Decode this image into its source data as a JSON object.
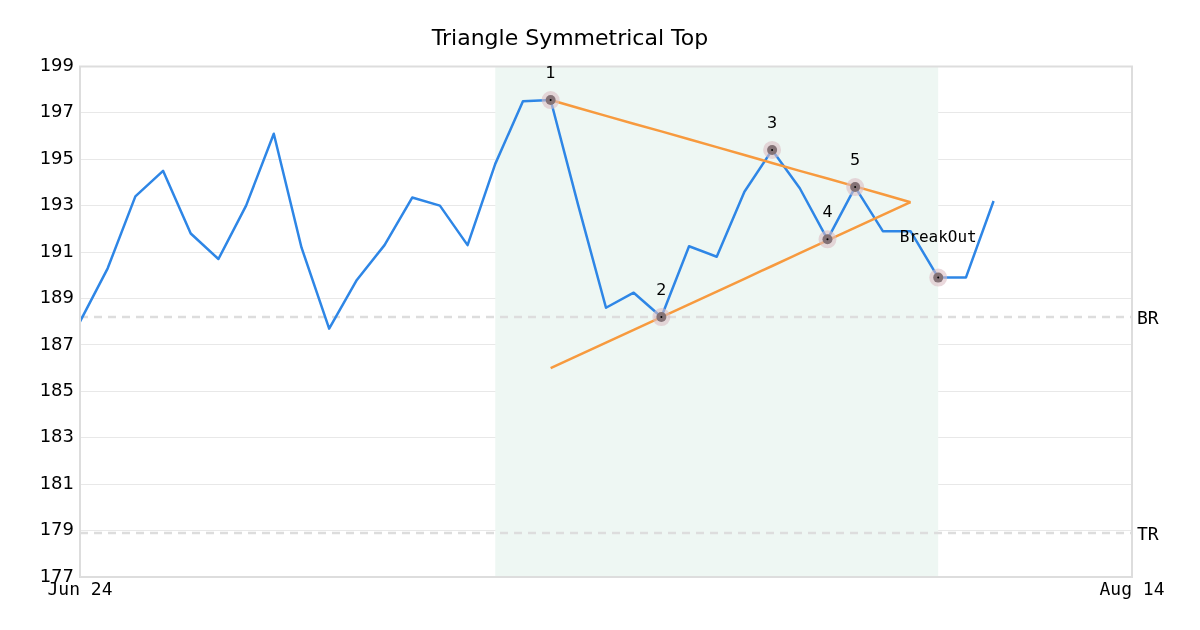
{
  "chart_data": {
    "type": "line",
    "title": "Triangle Symmetrical Top",
    "categories": [
      "Jun 24",
      null,
      null,
      null,
      null,
      null,
      null,
      null,
      null,
      null,
      null,
      null,
      null,
      null,
      null,
      null,
      null,
      null,
      null,
      null,
      null,
      null,
      null,
      null,
      null,
      null,
      null,
      null,
      null,
      null,
      null,
      null,
      null,
      null,
      null,
      null,
      null,
      null,
      "Aug 14"
    ],
    "ylim": [
      177,
      199
    ],
    "yticks": [
      177,
      179,
      181,
      183,
      185,
      187,
      189,
      191,
      193,
      195,
      197,
      199
    ],
    "grid": "y",
    "legend": false,
    "marker": "none",
    "line_style": "solid",
    "series": [
      {
        "color": "#2e86e6",
        "values": [
          188.0,
          190.3,
          193.4,
          194.5,
          191.8,
          190.7,
          193.0,
          196.1,
          191.2,
          187.7,
          189.8,
          191.3,
          193.35,
          193.0,
          191.3,
          194.8,
          197.5,
          197.55,
          193.0,
          188.6,
          189.25,
          188.2,
          191.25,
          190.8,
          193.6,
          195.4,
          193.75,
          191.55,
          193.8,
          191.9,
          191.9,
          189.9,
          189.9,
          193.2,
          null,
          null,
          null,
          null,
          null
        ]
      },
      {
        "color": "#f79a3e",
        "values": [
          null,
          null,
          null,
          null,
          null,
          null,
          null,
          null,
          null,
          null,
          null,
          null,
          null,
          null,
          null,
          null,
          null,
          197.55,
          197.21,
          196.87,
          196.53,
          196.2,
          195.86,
          195.52,
          195.18,
          194.84,
          194.5,
          194.17,
          193.83,
          193.49,
          193.15,
          null,
          null,
          null,
          null,
          null,
          null,
          null,
          null
        ]
      },
      {
        "color": "#f79a3e",
        "values": [
          null,
          null,
          null,
          null,
          null,
          null,
          null,
          null,
          null,
          null,
          null,
          null,
          null,
          null,
          null,
          null,
          null,
          186.0,
          186.55,
          187.1,
          187.65,
          188.2,
          188.75,
          189.3,
          189.85,
          190.4,
          190.95,
          191.5,
          192.05,
          192.6,
          193.15,
          null,
          null,
          null,
          null,
          null,
          null,
          null,
          null
        ]
      },
      {
        "type": "scatter",
        "marker": "circle",
        "color": "#000000",
        "values": [
          null,
          null,
          null,
          null,
          null,
          null,
          null,
          null,
          null,
          null,
          null,
          null,
          null,
          null,
          null,
          null,
          null,
          197.55,
          null,
          null,
          null,
          188.2,
          null,
          null,
          null,
          195.4,
          null,
          191.55,
          193.8,
          null,
          null,
          189.9,
          null,
          null,
          null,
          null,
          null,
          null,
          null
        ]
      }
    ],
    "ref_lines": [
      {
        "axis": "y",
        "value": 188.2,
        "label": "BR",
        "color": "#dddddd",
        "line_style": "dashed"
      },
      {
        "axis": "y",
        "value": 178.9,
        "label": "TR",
        "color": "#dddddd",
        "line_style": "dashed"
      }
    ],
    "annotations": [
      {
        "text": "1",
        "y": 197.55
      },
      {
        "text": "2",
        "y": 188.2
      },
      {
        "text": "3",
        "y": 195.4
      },
      {
        "text": "4",
        "y": 191.55
      },
      {
        "text": "5",
        "y": 193.8
      },
      {
        "text": "BreakOut",
        "y": 189.9
      }
    ]
  }
}
